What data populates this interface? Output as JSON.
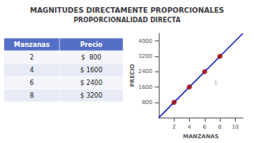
{
  "chart_data": {
    "type": "scatter",
    "title": "MAGNITUDES DIRECTAMENTE PROPORCIONALES",
    "subtitle": "PROPORCIONALIDAD DIRECTA",
    "xlabel": "MANZANAS",
    "ylabel": "PRECIO",
    "xlim": [
      0,
      11
    ],
    "ylim": [
      0,
      4400
    ],
    "xticks": [
      2,
      4,
      6,
      8,
      10
    ],
    "yticks": [
      800,
      1600,
      2400,
      3200,
      4000
    ],
    "grid": false,
    "series": [
      {
        "type": "line",
        "color": "#1a1acc",
        "x": [
          0,
          11
        ],
        "values": [
          0,
          4400
        ]
      },
      {
        "type": "scatter",
        "color": "#aa0000",
        "x": [
          2,
          4,
          6,
          8
        ],
        "values": [
          800,
          1600,
          2400,
          3200
        ]
      }
    ],
    "annotations": [
      {
        "text": "k",
        "x": 7.5,
        "y": 1800
      }
    ],
    "table": {
      "headers": [
        "Manzanas",
        "Precio"
      ],
      "rows": [
        [
          2,
          "$  800"
        ],
        [
          4,
          "$ 1600"
        ],
        [
          6,
          "$ 2400"
        ],
        [
          8,
          "$ 3200"
        ]
      ]
    }
  }
}
